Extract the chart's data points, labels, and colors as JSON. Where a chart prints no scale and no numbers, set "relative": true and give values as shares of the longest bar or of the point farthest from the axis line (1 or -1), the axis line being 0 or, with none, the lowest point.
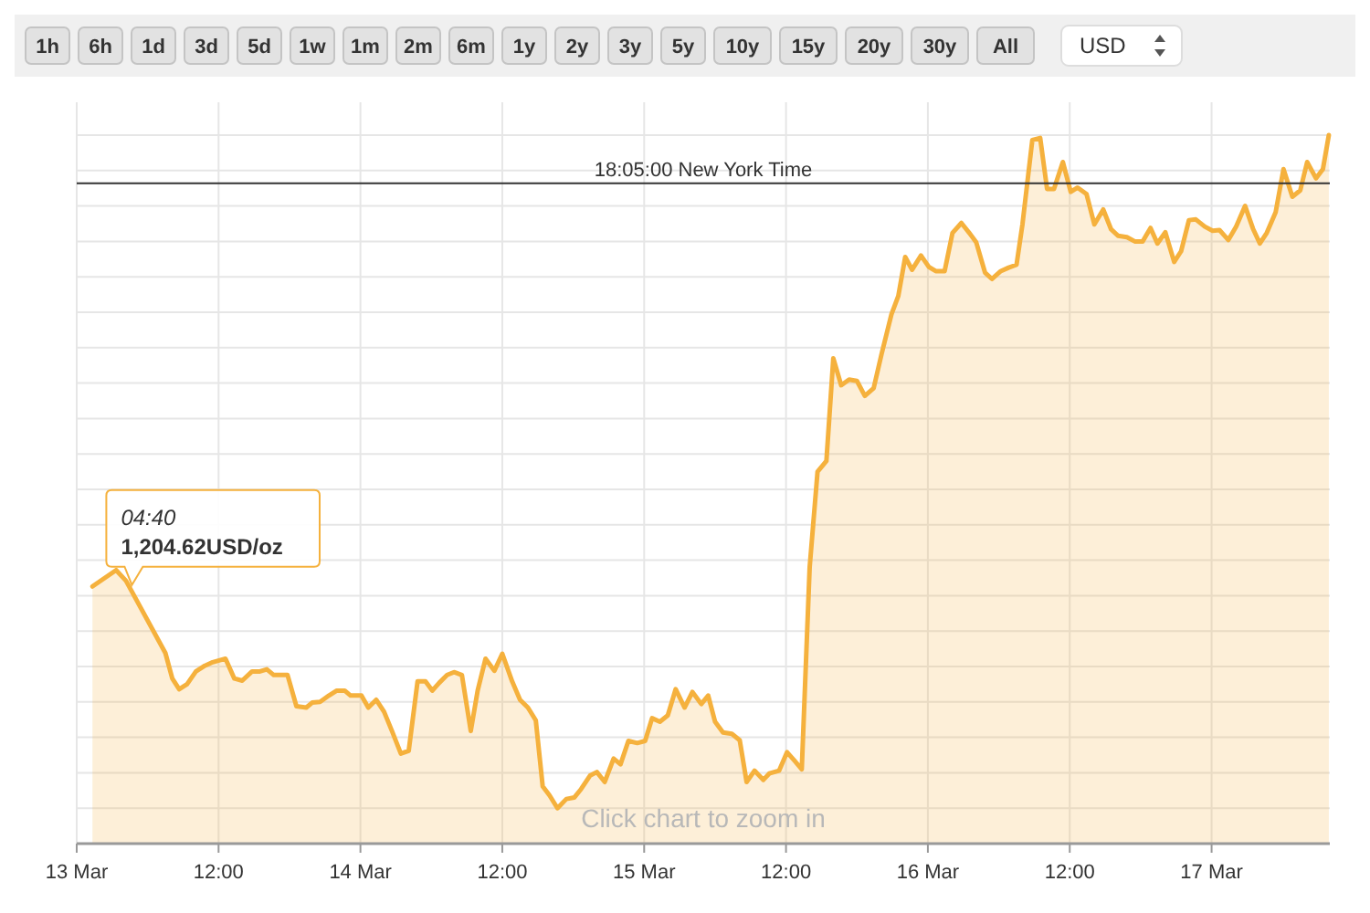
{
  "chart_data": [
    {
      "type": "other",
      "annotations": [
        "1h",
        "6h",
        "1d",
        "3d",
        "5d",
        "1w",
        "1m",
        "2m",
        "6m",
        "1y",
        "2y",
        "3y",
        "5y",
        "10y",
        "15y",
        "20y",
        "30y",
        "All",
        "USD"
      ]
    },
    {
      "type": "area",
      "relative": true,
      "x": [
        "--03-13T01:20",
        "--03-13T03:20",
        "--03-13T04:10",
        "--03-13T07:30",
        "--03-13T08:05",
        "--03-13T08:40",
        "--03-13T09:20",
        "--03-13T10:05",
        "--03-13T10:50",
        "--03-13T11:30",
        "--03-13T12:35",
        "--03-13T13:20",
        "--03-13T14:00",
        "--03-13T14:50",
        "--03-13T15:30",
        "--03-13T16:05",
        "--03-13T16:40",
        "--03-13T17:50",
        "--03-13T18:35",
        "--03-13T19:25",
        "--03-13T19:55",
        "--03-13T20:35",
        "--03-13T21:20",
        "--03-13T22:00",
        "--03-13T22:40",
        "--03-13T23:10",
        "--03-14T00:05",
        "--03-14T00:40",
        "--03-14T01:20",
        "--03-14T02:00",
        "--03-14T02:40",
        "--03-14T03:25",
        "--03-14T04:05",
        "--03-14T04:50",
        "--03-14T05:30",
        "--03-14T06:05",
        "--03-14T06:40",
        "--03-14T07:20",
        "--03-14T07:55",
        "--03-14T08:35",
        "--03-14T09:20",
        "--03-14T09:55",
        "--03-14T10:35",
        "--03-14T11:20",
        "--03-14T12:00",
        "--03-14T12:50",
        "--03-14T13:30",
        "--03-14T14:10",
        "--03-14T14:50",
        "--03-14T15:25",
        "--03-14T16:00",
        "--03-14T16:40",
        "--03-14T17:25",
        "--03-14T18:05",
        "--03-14T18:40",
        "--03-14T19:25",
        "--03-14T20:00",
        "--03-14T20:40",
        "--03-14T21:25",
        "--03-14T22:00",
        "--03-14T22:40",
        "--03-14T23:25",
        "--03-15T00:05",
        "--03-15T00:40",
        "--03-15T01:20",
        "--03-15T02:00",
        "--03-15T02:40",
        "--03-15T03:25",
        "--03-15T04:05",
        "--03-15T04:50",
        "--03-15T05:25",
        "--03-15T06:00",
        "--03-15T06:40",
        "--03-15T07:25",
        "--03-15T08:05",
        "--03-15T08:40",
        "--03-15T09:20",
        "--03-15T10:05",
        "--03-15T10:35",
        "--03-15T11:25",
        "--03-15T12:05",
        "--03-15T12:40",
        "--03-15T13:20",
        "--03-15T14:00",
        "--03-15T14:40",
        "--03-15T15:25",
        "--03-15T16:00",
        "--03-15T16:40",
        "--03-15T17:20",
        "--03-15T18:00",
        "--03-15T18:40",
        "--03-15T19:25",
        "--03-15T20:05",
        "--03-15T20:55",
        "--03-15T21:30",
        "--03-15T22:05",
        "--03-15T22:40",
        "--03-15T23:25",
        "--03-16T00:05",
        "--03-16T00:40",
        "--03-16T01:25",
        "--03-16T02:05",
        "--03-16T02:50",
        "--03-16T03:30",
        "--03-16T04:05",
        "--03-16T04:50",
        "--03-16T05:25",
        "--03-16T06:10",
        "--03-16T06:50",
        "--03-16T07:30",
        "--03-16T08:00",
        "--03-16T08:50",
        "--03-16T09:30",
        "--03-16T10:05",
        "--03-16T10:40",
        "--03-16T11:25",
        "--03-16T12:05",
        "--03-16T12:40",
        "--03-16T13:25",
        "--03-16T14:05",
        "--03-16T14:50",
        "--03-16T15:30",
        "--03-16T16:05",
        "--03-16T16:50",
        "--03-16T17:30",
        "--03-16T18:10",
        "--03-16T18:50",
        "--03-16T19:25",
        "--03-16T20:05",
        "--03-16T20:50",
        "--03-16T21:25",
        "--03-16T22:05",
        "--03-16T22:40",
        "--03-16T23:25",
        "--03-17T00:05",
        "--03-17T00:40",
        "--03-17T01:25",
        "--03-17T02:05",
        "--03-17T02:50",
        "--03-17T03:30",
        "--03-17T04:05",
        "--03-17T04:40",
        "--03-17T05:25",
        "--03-17T06:05",
        "--03-17T06:50",
        "--03-17T07:30",
        "--03-17T08:05",
        "--03-17T08:50",
        "--03-17T09:25",
        "--03-17T09:55"
      ],
      "series": [
        {
          "color": "#f5b13d",
          "values": [
            0.363,
            0.386,
            0.371,
            0.269,
            0.233,
            0.218,
            0.225,
            0.243,
            0.251,
            0.256,
            0.261,
            0.233,
            0.23,
            0.243,
            0.243,
            0.246,
            0.238,
            0.238,
            0.194,
            0.192,
            0.199,
            0.2,
            0.209,
            0.216,
            0.216,
            0.209,
            0.209,
            0.192,
            0.203,
            0.186,
            0.159,
            0.127,
            0.131,
            0.229,
            0.229,
            0.216,
            0.227,
            0.238,
            0.242,
            0.238,
            0.159,
            0.216,
            0.261,
            0.244,
            0.268,
            0.229,
            0.203,
            0.192,
            0.174,
            0.081,
            0.068,
            0.05,
            0.063,
            0.065,
            0.077,
            0.096,
            0.101,
            0.087,
            0.12,
            0.112,
            0.145,
            0.142,
            0.145,
            0.177,
            0.172,
            0.181,
            0.218,
            0.192,
            0.214,
            0.197,
            0.209,
            0.172,
            0.157,
            0.155,
            0.146,
            0.087,
            0.103,
            0.09,
            0.099,
            0.103,
            0.129,
            0.118,
            0.105,
            0.39,
            0.525,
            0.54,
            0.685,
            0.647,
            0.655,
            0.653,
            0.632,
            0.643,
            0.691,
            0.747,
            0.773,
            0.828,
            0.81,
            0.83,
            0.814,
            0.808,
            0.808,
            0.862,
            0.876,
            0.862,
            0.849,
            0.806,
            0.797,
            0.808,
            0.813,
            0.817,
            0.874,
            0.993,
            0.996,
            0.924,
            0.924,
            0.962,
            0.92,
            0.926,
            0.917,
            0.874,
            0.895,
            0.867,
            0.858,
            0.856,
            0.85,
            0.85,
            0.869,
            0.847,
            0.863,
            0.821,
            0.836,
            0.88,
            0.881,
            0.871,
            0.865,
            0.866,
            0.852,
            0.871,
            0.9,
            0.868,
            0.847,
            0.862,
            0.891,
            0.952,
            0.913,
            0.922,
            0.962,
            0.939,
            0.952,
            1.0
          ]
        }
      ],
      "xlim": [
        "--03-13",
        "--03-17T10:00"
      ],
      "xticks": [
        {
          "value": "--03-13",
          "label": "13 Mar"
        },
        {
          "value": "--03-13T12:00",
          "label": "12:00"
        },
        {
          "value": "--03-14",
          "label": "14 Mar"
        },
        {
          "value": "--03-14T12:00",
          "label": "12:00"
        },
        {
          "value": "--03-15",
          "label": "15 Mar"
        },
        {
          "value": "--03-15T12:00",
          "label": "12:00"
        },
        {
          "value": "--03-16",
          "label": "16 Mar"
        },
        {
          "value": "--03-16T12:00",
          "label": "12:00"
        },
        {
          "value": "--03-17",
          "label": "17 Mar"
        }
      ],
      "grid": true,
      "ref_lines": [
        {
          "axis": "y",
          "value": 0.932,
          "color": "#333333"
        }
      ],
      "annotations": [
        {
          "text": "18:05:00 New York Time",
          "x": "--03-15T05:00",
          "y": 0.932
        },
        {
          "text": "04:40",
          "x": "--03-13T04:40",
          "y": 0.36
        },
        {
          "text": "1,204.62USD/oz",
          "x": "--03-13T04:40",
          "y": 0.36
        },
        "Click chart to zoom in"
      ]
    }
  ]
}
